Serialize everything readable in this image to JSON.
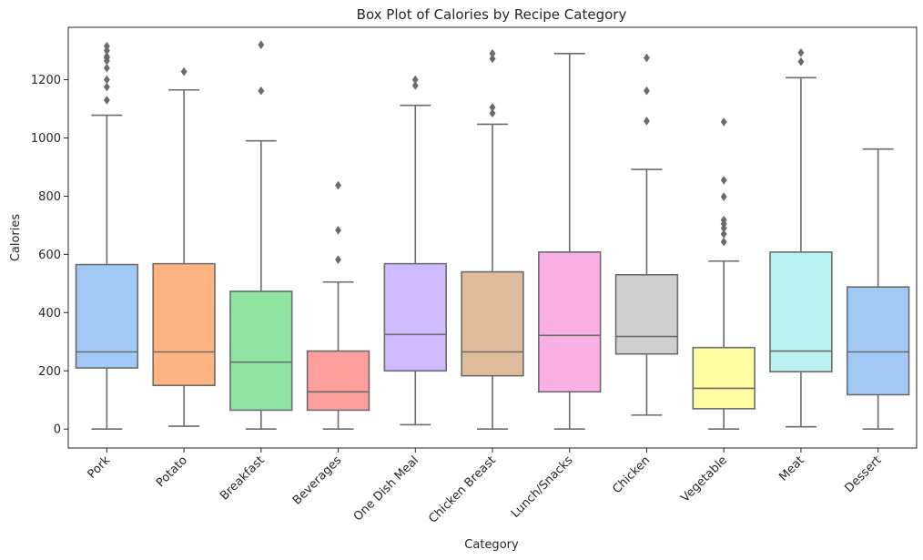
{
  "chart_data": {
    "type": "box",
    "title": "Box Plot of Calories by Recipe Category",
    "xlabel": "Category",
    "ylabel": "Calories",
    "ylim": [
      -65,
      1380
    ],
    "yticks": [
      0,
      200,
      400,
      600,
      800,
      1000,
      1200
    ],
    "grid": false,
    "legend": "none",
    "line_color": "#6b6b6b",
    "categories": [
      "Pork",
      "Potato",
      "Breakfast",
      "Beverages",
      "One Dish Meal",
      "Chicken Breast",
      "Lunch/Snacks",
      "Chicken",
      "Vegetable",
      "Meat",
      "Dessert"
    ],
    "colors": [
      "#a1c9f4",
      "#ffb482",
      "#8de5a1",
      "#ff9f9b",
      "#d0bbff",
      "#debb9b",
      "#fab0e4",
      "#cfcfcf",
      "#fffea3",
      "#b9f2f0",
      "#a1c9f4"
    ],
    "boxes": [
      {
        "whisker_low": 0,
        "q1": 210,
        "median": 265,
        "q3": 565,
        "whisker_high": 1078,
        "outliers": [
          1130,
          1175,
          1200,
          1240,
          1265,
          1275,
          1280,
          1300,
          1315
        ]
      },
      {
        "whisker_low": 10,
        "q1": 150,
        "median": 265,
        "q3": 568,
        "whisker_high": 1165,
        "outliers": [
          1228
        ]
      },
      {
        "whisker_low": 0,
        "q1": 65,
        "median": 230,
        "q3": 473,
        "whisker_high": 990,
        "outliers": [
          1162,
          1320
        ]
      },
      {
        "whisker_low": 0,
        "q1": 65,
        "median": 128,
        "q3": 268,
        "whisker_high": 505,
        "outliers": [
          582,
          683,
          837
        ]
      },
      {
        "whisker_low": 15,
        "q1": 200,
        "median": 325,
        "q3": 568,
        "whisker_high": 1112,
        "outliers": [
          1180,
          1200
        ]
      },
      {
        "whisker_low": 0,
        "q1": 183,
        "median": 265,
        "q3": 540,
        "whisker_high": 1047,
        "outliers": [
          1085,
          1105,
          1272,
          1290
        ]
      },
      {
        "whisker_low": 0,
        "q1": 128,
        "median": 322,
        "q3": 608,
        "whisker_high": 1290,
        "outliers": []
      },
      {
        "whisker_low": 48,
        "q1": 258,
        "median": 318,
        "q3": 530,
        "whisker_high": 892,
        "outliers": [
          1058,
          1162,
          1275
        ]
      },
      {
        "whisker_low": 0,
        "q1": 70,
        "median": 140,
        "q3": 280,
        "whisker_high": 577,
        "outliers": [
          643,
          670,
          690,
          705,
          718,
          798,
          855,
          1055
        ]
      },
      {
        "whisker_low": 8,
        "q1": 197,
        "median": 268,
        "q3": 608,
        "whisker_high": 1207,
        "outliers": [
          1262,
          1293
        ]
      },
      {
        "whisker_low": 0,
        "q1": 118,
        "median": 265,
        "q3": 488,
        "whisker_high": 962,
        "outliers": []
      }
    ]
  }
}
